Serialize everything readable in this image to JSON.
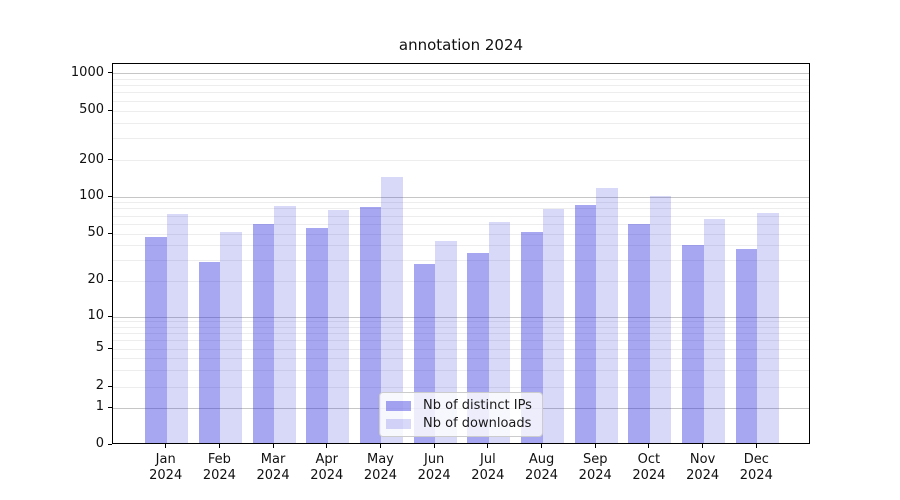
{
  "figure": {
    "title": "annotation 2024"
  },
  "chart_data": {
    "type": "bar",
    "title": "annotation 2024",
    "categories": [
      "Jan",
      "Feb",
      "Mar",
      "Apr",
      "May",
      "Jun",
      "Jul",
      "Aug",
      "Sep",
      "Oct",
      "Nov",
      "Dec"
    ],
    "year_label": "2024",
    "series": [
      {
        "name": "Nb of distinct IPs",
        "color": "rgba(40,40,220,0.41)",
        "values": [
          45,
          28,
          58,
          54,
          80,
          27,
          33,
          50,
          83,
          58,
          39,
          36
        ]
      },
      {
        "name": "Nb of downloads",
        "color": "rgba(40,40,220,0.18)",
        "values": [
          70,
          50,
          82,
          75,
          140,
          42,
          60,
          77,
          115,
          98,
          64,
          71
        ]
      }
    ],
    "yscale": "symlog",
    "yticks": [
      0,
      1,
      2,
      5,
      10,
      20,
      50,
      100,
      200,
      500,
      1000
    ],
    "ylim": [
      0,
      1200
    ],
    "grid": true,
    "legend_position": "lower center",
    "colors": {
      "grid_major": "#c6c6c6",
      "grid_minor": "#ededed",
      "text": "#111111"
    }
  }
}
